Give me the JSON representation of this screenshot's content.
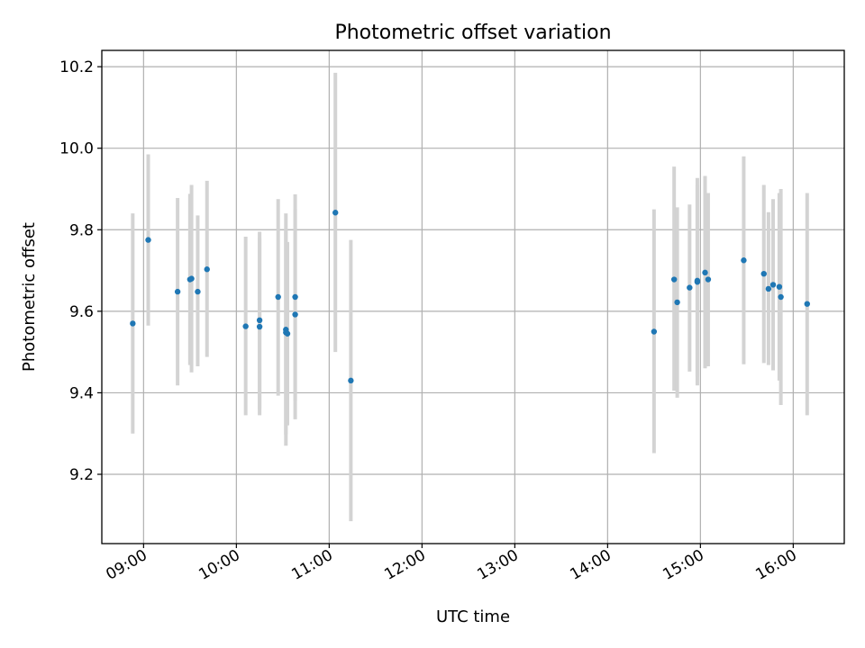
{
  "chart_data": {
    "type": "scatter",
    "title": "Photometric offset variation",
    "xlabel": "UTC time",
    "ylabel": "Photometric offset",
    "xlim": [
      "08:33",
      "16:33"
    ],
    "ylim": [
      9.03,
      10.24
    ],
    "xticks": [
      "09:00",
      "10:00",
      "11:00",
      "12:00",
      "13:00",
      "14:00",
      "15:00",
      "16:00"
    ],
    "yticks": [
      9.2,
      9.4,
      9.6,
      9.8,
      10.0,
      10.2
    ],
    "grid": true,
    "marker_color": "#1f77b4",
    "errorbar_color": "#d3d3d3",
    "points": [
      {
        "time": "08:53",
        "y": 9.57,
        "ymin": 9.3,
        "ymax": 9.84
      },
      {
        "time": "09:03",
        "y": 9.775,
        "ymin": 9.565,
        "ymax": 9.985
      },
      {
        "time": "09:22",
        "y": 9.648,
        "ymin": 9.418,
        "ymax": 9.878
      },
      {
        "time": "09:30",
        "y": 9.678,
        "ymin": 9.468,
        "ymax": 9.888
      },
      {
        "time": "09:31",
        "y": 9.68,
        "ymin": 9.45,
        "ymax": 9.91
      },
      {
        "time": "09:35",
        "y": 9.648,
        "ymin": 9.465,
        "ymax": 9.835
      },
      {
        "time": "09:41",
        "y": 9.703,
        "ymin": 9.488,
        "ymax": 9.92
      },
      {
        "time": "10:06",
        "y": 9.563,
        "ymin": 9.345,
        "ymax": 9.783
      },
      {
        "time": "10:15",
        "y": 9.562,
        "ymin": 9.345,
        "ymax": 9.78
      },
      {
        "time": "10:15",
        "y": 9.578,
        "ymin": 9.36,
        "ymax": 9.795
      },
      {
        "time": "10:27",
        "y": 9.635,
        "ymin": 9.393,
        "ymax": 9.875
      },
      {
        "time": "10:32",
        "y": 9.555,
        "ymin": 9.298,
        "ymax": 9.84
      },
      {
        "time": "10:32",
        "y": 9.548,
        "ymin": 9.27,
        "ymax": 9.8
      },
      {
        "time": "10:33",
        "y": 9.545,
        "ymin": 9.32,
        "ymax": 9.77
      },
      {
        "time": "10:38",
        "y": 9.635,
        "ymin": 9.38,
        "ymax": 9.887
      },
      {
        "time": "10:38",
        "y": 9.592,
        "ymin": 9.335,
        "ymax": 9.85
      },
      {
        "time": "11:04",
        "y": 9.842,
        "ymin": 9.5,
        "ymax": 10.185
      },
      {
        "time": "11:14",
        "y": 9.43,
        "ymin": 9.085,
        "ymax": 9.775
      },
      {
        "time": "14:30",
        "y": 9.55,
        "ymin": 9.252,
        "ymax": 9.85
      },
      {
        "time": "14:43",
        "y": 9.678,
        "ymin": 9.405,
        "ymax": 9.955
      },
      {
        "time": "14:45",
        "y": 9.622,
        "ymin": 9.388,
        "ymax": 9.855
      },
      {
        "time": "14:53",
        "y": 9.658,
        "ymin": 9.452,
        "ymax": 9.862
      },
      {
        "time": "14:58",
        "y": 9.672,
        "ymin": 9.418,
        "ymax": 9.927
      },
      {
        "time": "14:58",
        "y": 9.675,
        "ymin": 9.44,
        "ymax": 9.91
      },
      {
        "time": "15:03",
        "y": 9.695,
        "ymin": 9.46,
        "ymax": 9.932
      },
      {
        "time": "15:05",
        "y": 9.678,
        "ymin": 9.465,
        "ymax": 9.89
      },
      {
        "time": "15:28",
        "y": 9.725,
        "ymin": 9.47,
        "ymax": 9.98
      },
      {
        "time": "15:41",
        "y": 9.692,
        "ymin": 9.473,
        "ymax": 9.91
      },
      {
        "time": "15:44",
        "y": 9.655,
        "ymin": 9.468,
        "ymax": 9.843
      },
      {
        "time": "15:47",
        "y": 9.665,
        "ymin": 9.455,
        "ymax": 9.875
      },
      {
        "time": "15:51",
        "y": 9.66,
        "ymin": 9.43,
        "ymax": 9.89
      },
      {
        "time": "15:52",
        "y": 9.635,
        "ymin": 9.37,
        "ymax": 9.9
      },
      {
        "time": "16:09",
        "y": 9.618,
        "ymin": 9.345,
        "ymax": 9.89
      }
    ]
  }
}
